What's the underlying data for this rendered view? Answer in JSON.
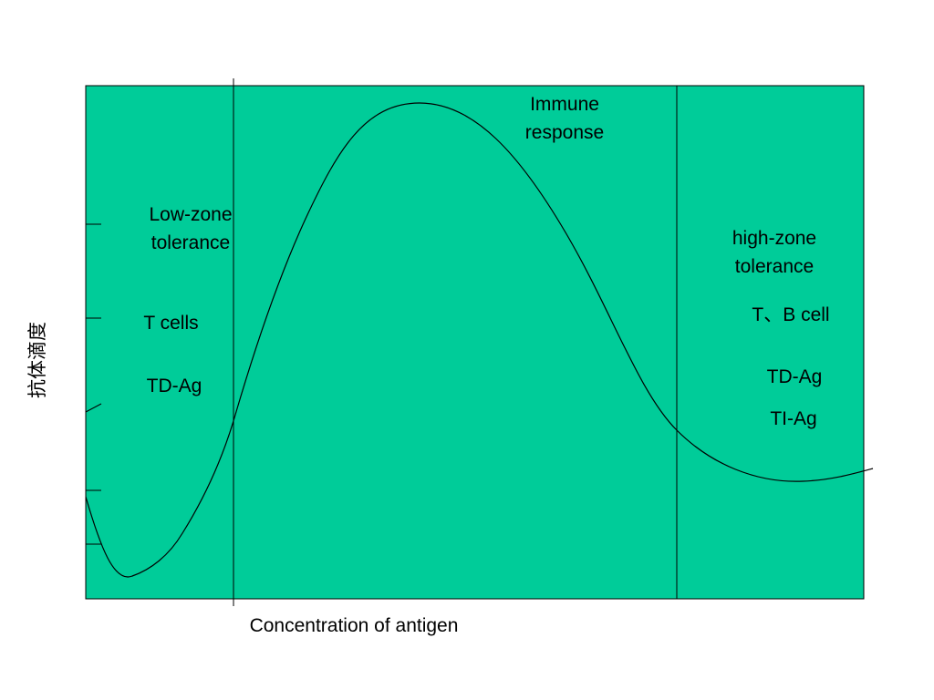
{
  "diagram": {
    "background_color": "#00CC99",
    "line_color": "#000000",
    "y_axis_label": "抗体滴度",
    "x_axis_label": "Concentration of antigen",
    "regions": {
      "low_zone": {
        "title_lines": [
          "Low-zone",
          "tolerance"
        ],
        "cells": "T cells",
        "antigen": "TD-Ag"
      },
      "immune": {
        "title_lines": [
          "Immune",
          "response"
        ]
      },
      "high_zone": {
        "title_lines": [
          "high-zone",
          "tolerance"
        ],
        "cells": "T、B cell",
        "antigens": [
          "TD-Ag",
          "TI-Ag"
        ]
      }
    }
  }
}
